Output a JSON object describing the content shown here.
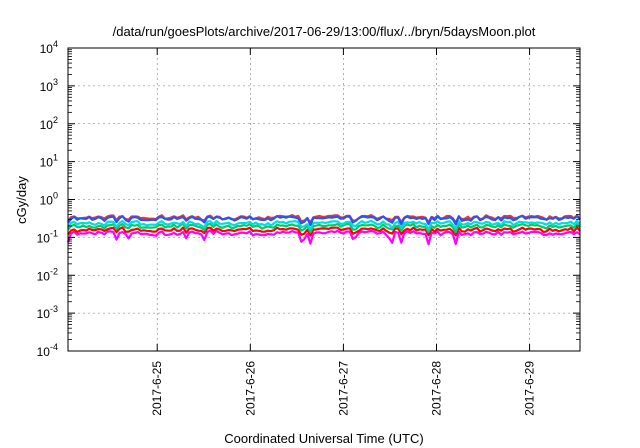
{
  "chart_data": {
    "type": "line",
    "title": "/data/run/goesPlots/archive/2017-06-29/13:00/flux/../bryn/5daysMoon.plot",
    "xlabel": "Coordinated Universal Time (UTC)",
    "ylabel": "cGy/day",
    "yscale": "log",
    "ylim": [
      0.0001,
      10000
    ],
    "xlim": [
      "2017-06-24 01:00",
      "2017-06-29 13:00"
    ],
    "grid": true,
    "legend": "none",
    "y_ticks": [
      {
        "value": 0.0001,
        "base": "10",
        "exp": "-4"
      },
      {
        "value": 0.001,
        "base": "10",
        "exp": "-3"
      },
      {
        "value": 0.01,
        "base": "10",
        "exp": "-2"
      },
      {
        "value": 0.1,
        "base": "10",
        "exp": "-1"
      },
      {
        "value": 1,
        "base": "10",
        "exp": "0"
      },
      {
        "value": 10,
        "base": "10",
        "exp": "1"
      },
      {
        "value": 100,
        "base": "10",
        "exp": "2"
      },
      {
        "value": 1000,
        "base": "10",
        "exp": "3"
      },
      {
        "value": 10000,
        "base": "10",
        "exp": "4"
      }
    ],
    "x_ticks": [
      {
        "value": "2017-06-25 00:00",
        "label": "2017-6-25"
      },
      {
        "value": "2017-06-26 00:00",
        "label": "2017-6-26"
      },
      {
        "value": "2017-06-27 00:00",
        "label": "2017-6-27"
      },
      {
        "value": "2017-06-28 00:00",
        "label": "2017-6-28"
      },
      {
        "value": "2017-06-29 00:00",
        "label": "2017-6-29"
      }
    ],
    "series": [
      {
        "color": "#ff00ff",
        "baseline": 0.13,
        "dip_depth": 0.5
      },
      {
        "color": "#ff0000",
        "baseline": 0.16,
        "dip_depth": 0.3
      },
      {
        "color": "#00cc66",
        "baseline": 0.2,
        "dip_depth": 0.28
      },
      {
        "color": "#00dddd",
        "baseline": 0.24,
        "dip_depth": 0.3
      },
      {
        "color": "#ee3333",
        "baseline": 0.34,
        "dip_depth": 0.25
      },
      {
        "color": "#2255ff",
        "baseline": 0.32,
        "dip_depth": 0.3
      }
    ]
  }
}
